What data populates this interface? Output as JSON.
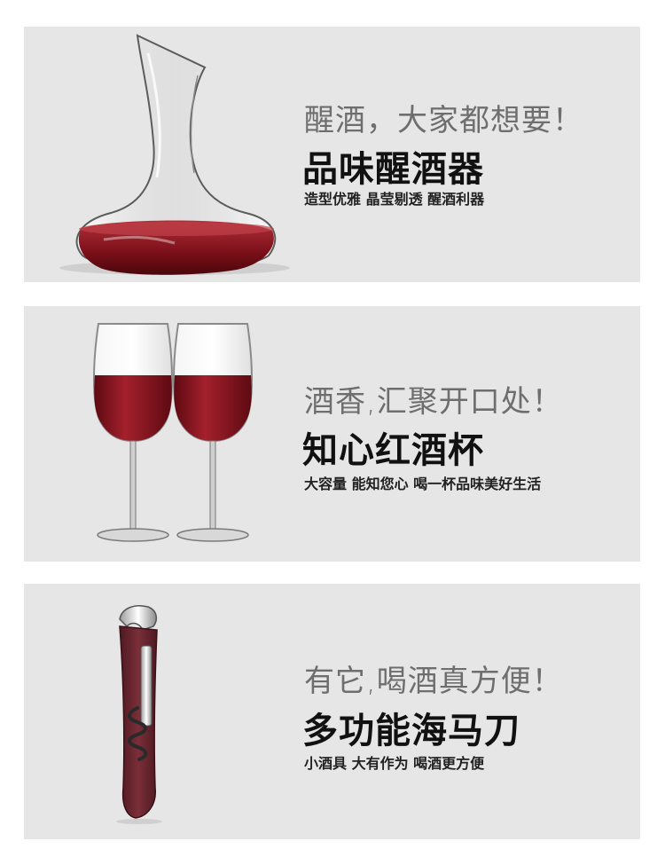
{
  "panels": [
    {
      "slogan": "醒酒，大家都想要！",
      "title": "品味醒酒器",
      "subtitle": "造型优雅 晶莹剔透 醒酒利器",
      "icon": "wine-decanter-icon"
    },
    {
      "slogan": "酒香,汇聚开口处！",
      "title": "知心红酒杯",
      "subtitle": "大容量 能知您心 喝一杯品味美好生活",
      "icon": "wine-glasses-icon"
    },
    {
      "slogan": "有它,喝酒真方便！",
      "title": "多功能海马刀",
      "subtitle": "小酒具 大有作为 喝酒更方便",
      "icon": "corkscrew-icon"
    }
  ],
  "colors": {
    "panel_bg": "#e6e6e6",
    "wine": "#8e1620",
    "slogan": "#6e6e6e",
    "title": "#111111"
  }
}
